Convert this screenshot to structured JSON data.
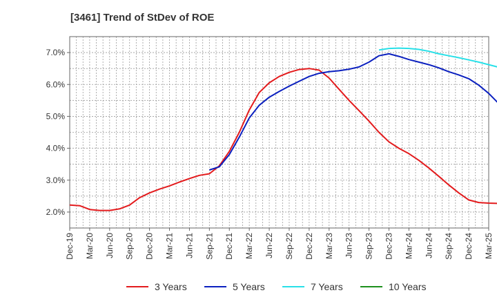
{
  "chart_data": {
    "type": "line",
    "title": "[3461]  Trend of StDev of ROE",
    "xlabel": "",
    "ylabel": "",
    "x_ticks": [
      "Dec-19",
      "Mar-20",
      "Jun-20",
      "Sep-20",
      "Dec-20",
      "Mar-21",
      "Jun-21",
      "Sep-21",
      "Dec-21",
      "Mar-22",
      "Jun-22",
      "Sep-22",
      "Dec-22",
      "Mar-23",
      "Jun-23",
      "Sep-23",
      "Dec-23",
      "Mar-24",
      "Jun-24",
      "Sep-24",
      "Dec-24",
      "Mar-25"
    ],
    "y_ticks": [
      "2.0%",
      "3.0%",
      "4.0%",
      "5.0%",
      "6.0%",
      "7.0%"
    ],
    "ylim": [
      1.5,
      7.5
    ],
    "grid": true,
    "legend_position": "bottom",
    "series": [
      {
        "name": "3 Years",
        "color": "#e31a1c",
        "points": [
          [
            0,
            2.22
          ],
          [
            1,
            2.2
          ],
          [
            2,
            2.08
          ],
          [
            3,
            2.05
          ],
          [
            4,
            2.05
          ],
          [
            5,
            2.1
          ],
          [
            6,
            2.22
          ],
          [
            7,
            2.45
          ],
          [
            8,
            2.6
          ],
          [
            9,
            2.72
          ],
          [
            10,
            2.82
          ],
          [
            11,
            2.94
          ],
          [
            12,
            3.05
          ],
          [
            13,
            3.15
          ],
          [
            14,
            3.2
          ],
          [
            15,
            3.45
          ],
          [
            16,
            3.9
          ],
          [
            17,
            4.5
          ],
          [
            18,
            5.2
          ],
          [
            19,
            5.75
          ],
          [
            20,
            6.05
          ],
          [
            21,
            6.25
          ],
          [
            22,
            6.38
          ],
          [
            23,
            6.47
          ],
          [
            24,
            6.5
          ],
          [
            25,
            6.45
          ],
          [
            26,
            6.2
          ],
          [
            27,
            5.85
          ],
          [
            28,
            5.5
          ],
          [
            29,
            5.18
          ],
          [
            30,
            4.85
          ],
          [
            31,
            4.5
          ],
          [
            32,
            4.2
          ],
          [
            33,
            4.0
          ],
          [
            34,
            3.83
          ],
          [
            35,
            3.62
          ],
          [
            36,
            3.38
          ],
          [
            37,
            3.12
          ],
          [
            38,
            2.85
          ],
          [
            39,
            2.6
          ],
          [
            40,
            2.38
          ],
          [
            41,
            2.3
          ],
          [
            42,
            2.28
          ],
          [
            43,
            2.27
          ],
          [
            44,
            2.17
          ]
        ]
      },
      {
        "name": "5 Years",
        "color": "#0a1fbf",
        "points": [
          [
            14,
            3.32
          ],
          [
            15,
            3.42
          ],
          [
            16,
            3.8
          ],
          [
            17,
            4.35
          ],
          [
            18,
            4.95
          ],
          [
            19,
            5.35
          ],
          [
            20,
            5.6
          ],
          [
            21,
            5.78
          ],
          [
            22,
            5.95
          ],
          [
            23,
            6.1
          ],
          [
            24,
            6.25
          ],
          [
            25,
            6.35
          ],
          [
            26,
            6.4
          ],
          [
            27,
            6.43
          ],
          [
            28,
            6.48
          ],
          [
            29,
            6.55
          ],
          [
            30,
            6.7
          ],
          [
            31,
            6.9
          ],
          [
            32,
            6.96
          ],
          [
            33,
            6.88
          ],
          [
            34,
            6.78
          ],
          [
            35,
            6.7
          ],
          [
            36,
            6.62
          ],
          [
            37,
            6.52
          ],
          [
            38,
            6.4
          ],
          [
            39,
            6.3
          ],
          [
            40,
            6.18
          ],
          [
            41,
            5.98
          ],
          [
            42,
            5.72
          ],
          [
            43,
            5.4
          ],
          [
            44,
            5.15
          ]
        ]
      },
      {
        "name": "7 Years",
        "color": "#28e0e8",
        "points": [
          [
            31,
            7.08
          ],
          [
            32,
            7.13
          ],
          [
            33,
            7.14
          ],
          [
            34,
            7.13
          ],
          [
            35,
            7.1
          ],
          [
            36,
            7.04
          ],
          [
            37,
            6.96
          ],
          [
            38,
            6.9
          ],
          [
            39,
            6.84
          ],
          [
            40,
            6.77
          ],
          [
            41,
            6.7
          ],
          [
            42,
            6.62
          ],
          [
            43,
            6.54
          ],
          [
            44,
            6.48
          ]
        ]
      },
      {
        "name": "10 Years",
        "color": "#1b8f1b",
        "points": []
      }
    ]
  }
}
